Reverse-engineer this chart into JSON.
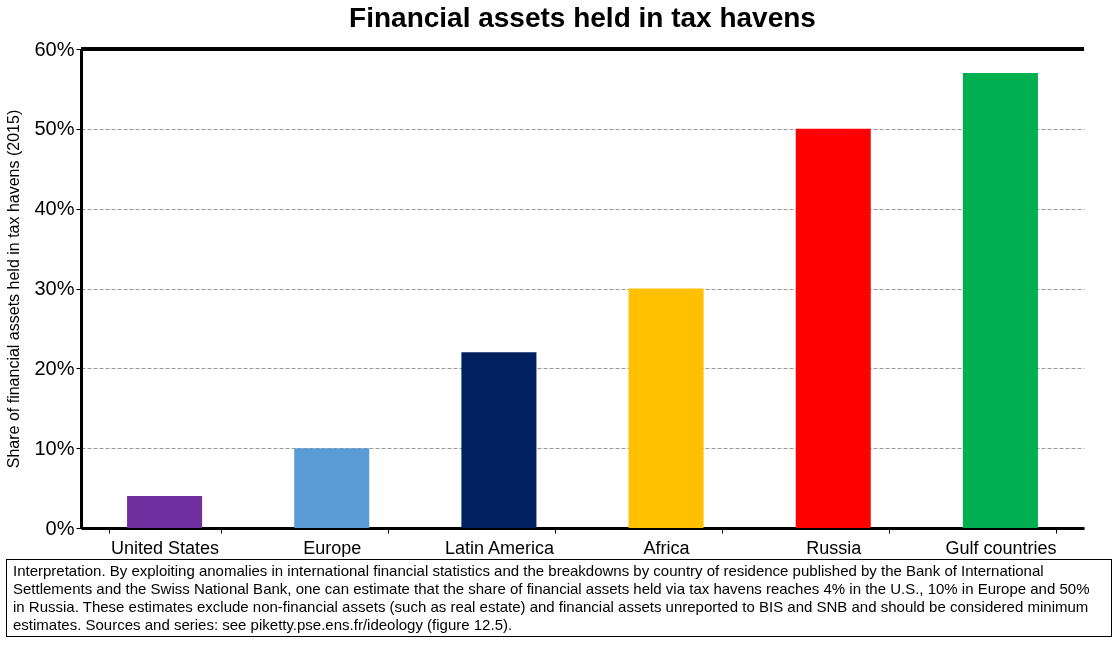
{
  "chart_data": {
    "type": "bar",
    "title": "Financial assets held in tax havens",
    "ylabel": "Share of financial assets held in tax havens (2015)",
    "categories": [
      "United States",
      "Europe",
      "Latin America",
      "Africa",
      "Russia",
      "Gulf countries"
    ],
    "values": [
      4,
      10,
      22,
      30,
      50,
      57
    ],
    "colors": [
      "#7030a0",
      "#5b9bd5",
      "#002060",
      "#ffc000",
      "#ff0000",
      "#00b050"
    ],
    "ylim": [
      0,
      60
    ],
    "yticks": [
      {
        "value": 0,
        "label": "0%"
      },
      {
        "value": 10,
        "label": "10%"
      },
      {
        "value": 20,
        "label": "20%"
      },
      {
        "value": 30,
        "label": "30%"
      },
      {
        "value": 40,
        "label": "40%"
      },
      {
        "value": 50,
        "label": "50%"
      },
      {
        "value": 60,
        "label": "60%"
      }
    ],
    "grid": "y",
    "annotations": [
      "Interpretation. By exploiting anomalies in international financial statistics and the breakdowns by country of residence published by the Bank of International Settlements and the Swiss National Bank, one can estimate that the share of financial assets held via tax havens reaches 4% in the U.S., 10% in Europe and 50% in Russia. These estimates exclude non-financial assets (such as real estate) and financial assets unreported to BIS and SNB and should be considered minimum estimates. Sources and series: see piketty.pse.ens.fr/ideology (figure 12.5)."
    ]
  }
}
